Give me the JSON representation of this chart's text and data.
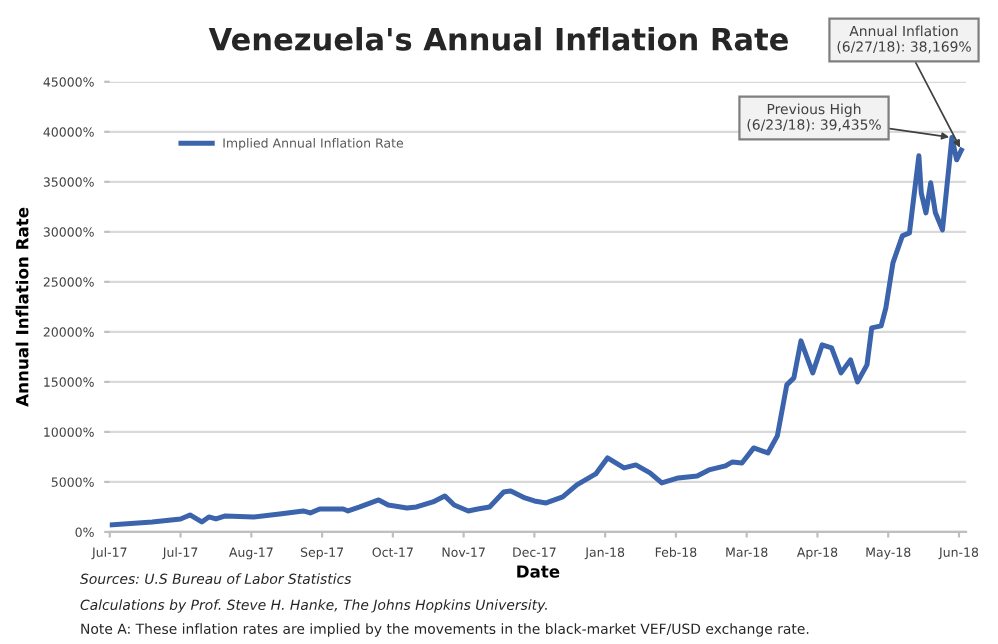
{
  "chart_data": {
    "type": "line",
    "title": "Venezuela's Annual Inflation Rate",
    "xlabel": "Date",
    "ylabel": "Annual Inflation Rate",
    "x": [
      "2017-07-01",
      "2017-07-19",
      "2017-07-31",
      "2017-08-04",
      "2017-08-09",
      "2017-08-12",
      "2017-08-15",
      "2017-08-19",
      "2017-08-31",
      "2017-09-11",
      "2017-09-21",
      "2017-09-24",
      "2017-09-28",
      "2017-10-08",
      "2017-10-10",
      "2017-10-15",
      "2017-10-23",
      "2017-10-27",
      "2017-11-04",
      "2017-11-08",
      "2017-11-15",
      "2017-11-20",
      "2017-11-24",
      "2017-11-30",
      "2017-12-04",
      "2017-12-09",
      "2017-12-15",
      "2017-12-18",
      "2017-12-24",
      "2017-12-28",
      "2018-01-02",
      "2018-01-09",
      "2018-01-15",
      "2018-01-23",
      "2018-01-28",
      "2018-02-04",
      "2018-02-09",
      "2018-02-15",
      "2018-02-20",
      "2018-02-27",
      "2018-03-07",
      "2018-03-12",
      "2018-03-19",
      "2018-03-22",
      "2018-03-26",
      "2018-03-31",
      "2018-04-06",
      "2018-04-10",
      "2018-04-14",
      "2018-04-17",
      "2018-04-20",
      "2018-04-25",
      "2018-04-29",
      "2018-05-03",
      "2018-05-07",
      "2018-05-11",
      "2018-05-14",
      "2018-05-18",
      "2018-05-20",
      "2018-05-24",
      "2018-05-26",
      "2018-05-29",
      "2018-06-02",
      "2018-06-05",
      "2018-06-09",
      "2018-06-10",
      "2018-06-12",
      "2018-06-14",
      "2018-06-16",
      "2018-06-19",
      "2018-06-23",
      "2018-06-25",
      "2018-06-27"
    ],
    "series": [
      {
        "name": "Implied Annual Inflation Rate",
        "color": "#3b64ad",
        "values": [
          700,
          1000,
          1300,
          1700,
          1000,
          1500,
          1300,
          1600,
          1500,
          1800,
          2100,
          1900,
          2300,
          2300,
          2100,
          2500,
          3200,
          2700,
          2400,
          2500,
          3000,
          3600,
          2700,
          2100,
          2300,
          2500,
          4000,
          4100,
          3400,
          3100,
          2900,
          3500,
          4700,
          5800,
          7400,
          6400,
          6700,
          5900,
          4900,
          5400,
          5600,
          6200,
          6600,
          7000,
          6900,
          8400,
          7900,
          9600,
          14700,
          15400,
          19100,
          15900,
          18700,
          18400,
          15900,
          17200,
          15000,
          16700,
          20400,
          20600,
          22400,
          26900,
          29600,
          29900,
          37600,
          33900,
          31900,
          34900,
          31900,
          30200,
          39435,
          37200,
          38169
        ]
      }
    ],
    "xlim": [
      "2017-07-01",
      "2018-06-29"
    ],
    "xticks": [
      {
        "value": "2017-07-01",
        "label": "Jul-17"
      },
      {
        "value": "2017-07-31",
        "label": "Jul-17"
      },
      {
        "value": "2017-08-30",
        "label": "Aug-17"
      },
      {
        "value": "2017-09-29",
        "label": "Sep-17"
      },
      {
        "value": "2017-10-29",
        "label": "Oct-17"
      },
      {
        "value": "2017-11-28",
        "label": "Nov-17"
      },
      {
        "value": "2017-12-28",
        "label": "Dec-17"
      },
      {
        "value": "2018-01-27",
        "label": "Jan-18"
      },
      {
        "value": "2018-02-26",
        "label": "Feb-18"
      },
      {
        "value": "2018-03-28",
        "label": "Mar-18"
      },
      {
        "value": "2018-04-27",
        "label": "Apr-18"
      },
      {
        "value": "2018-05-27",
        "label": "May-18"
      },
      {
        "value": "2018-06-26",
        "label": "Jun-18"
      }
    ],
    "ylim": [
      0,
      45000
    ],
    "yticks": [
      {
        "value": 0,
        "label": "0%"
      },
      {
        "value": 5000,
        "label": "5000%"
      },
      {
        "value": 10000,
        "label": "10000%"
      },
      {
        "value": 15000,
        "label": "15000%"
      },
      {
        "value": 20000,
        "label": "20000%"
      },
      {
        "value": 25000,
        "label": "25000%"
      },
      {
        "value": 30000,
        "label": "30000%"
      },
      {
        "value": 35000,
        "label": "35000%"
      },
      {
        "value": 40000,
        "label": "40000%"
      },
      {
        "value": 45000,
        "label": "45000%"
      }
    ],
    "grid": "y",
    "legend": "top left",
    "marker": "none",
    "line_style": "solid",
    "annotations": [
      {
        "text": "Previous High\n(6/23/18): 39,435%",
        "x": "2018-06-23",
        "y": 39435
      },
      {
        "text": "Annual Inflation\n(6/27/18): 38,169%",
        "x": "2018-06-27",
        "y": 38169
      },
      "Sources: U.S Bureau of Labor Statistics",
      "Calculations by Prof. Steve H. Hanke, The Johns Hopkins University.",
      "Note A: These inflation rates are implied by the movements in the black-market VEF/USD exchange rate."
    ]
  }
}
